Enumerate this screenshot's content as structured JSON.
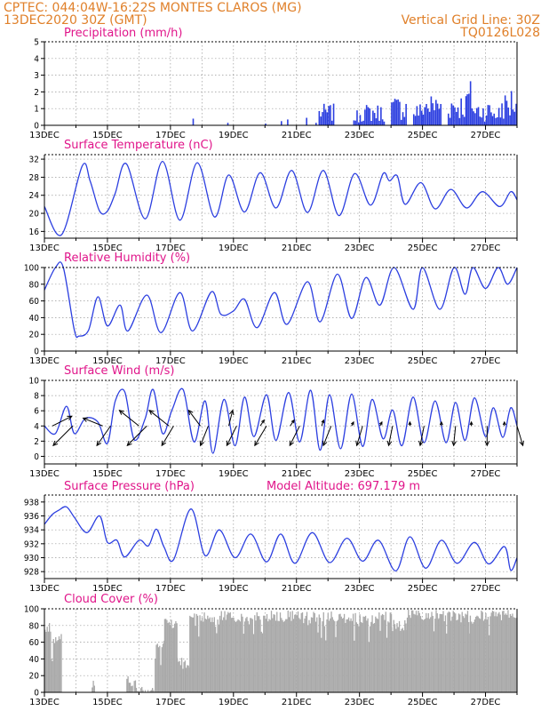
{
  "header": {
    "line1_left": "CPTEC:  044:04W-16:22S  MONTES CLAROS (MG)",
    "line2_left": "13DEC2020 30Z (GMT)",
    "line2_right": "Vertical Grid Line: 30Z",
    "line3_right": "TQ0126L028"
  },
  "colors": {
    "header": "#e0802a",
    "title": "#e0158a",
    "series": "#2c3fe0",
    "cloud": "#a9a9a9"
  },
  "x_labels": [
    "13DEC",
    "15DEC",
    "17DEC",
    "19DEC",
    "21DEC",
    "23DEC",
    "25DEC",
    "27DEC"
  ],
  "chart_data": [
    {
      "type": "bar",
      "title": "Precipitation (mm/h)",
      "ylabel": "mm/h",
      "ylim": [
        0,
        5
      ],
      "yticks": [
        0,
        1,
        2,
        3,
        4,
        5
      ],
      "x_range_days": [
        0,
        15
      ],
      "x_tick_labels": [
        "13DEC",
        "15DEC",
        "17DEC",
        "19DEC",
        "21DEC",
        "23DEC",
        "25DEC",
        "27DEC"
      ],
      "grid": true,
      "events": [
        {
          "x": 4.7,
          "y": 0.4
        },
        {
          "x": 5.8,
          "y": 0.15
        },
        {
          "x": 7.0,
          "y": 0.1
        },
        {
          "x": 7.5,
          "y": 0.25
        },
        {
          "x": 7.7,
          "y": 0.35
        },
        {
          "x": 8.3,
          "y": 0.45
        },
        {
          "x": 8.6,
          "y": 0.15
        }
      ],
      "clusters": [
        {
          "x0": 8.7,
          "x1": 9.2,
          "ymax": 1.3
        },
        {
          "x0": 9.8,
          "x1": 10.0,
          "ymax": 0.9
        },
        {
          "x0": 10.0,
          "x1": 10.8,
          "ymax": 1.3
        },
        {
          "x0": 11.0,
          "x1": 11.5,
          "ymax": 1.8
        },
        {
          "x0": 11.7,
          "x1": 12.0,
          "ymax": 1.4
        },
        {
          "x0": 12.0,
          "x1": 12.6,
          "ymax": 2.0
        },
        {
          "x0": 12.8,
          "x1": 13.4,
          "ymax": 2.0
        },
        {
          "x0": 13.4,
          "x1": 13.6,
          "ymax": 2.8
        },
        {
          "x0": 13.6,
          "x1": 14.2,
          "ymax": 1.5
        },
        {
          "x0": 14.2,
          "x1": 14.5,
          "ymax": 1.2
        },
        {
          "x0": 14.5,
          "x1": 14.8,
          "ymax": 2.0
        },
        {
          "x0": 14.8,
          "x1": 15.0,
          "ymax": 2.4
        }
      ]
    },
    {
      "type": "line",
      "title": "Surface Temperature (nC)",
      "ylim": [
        14.5,
        33
      ],
      "yticks": [
        16,
        20,
        24,
        28,
        32
      ],
      "x_range_days": [
        0,
        15
      ],
      "grid": true,
      "extrema": [
        [
          0.0,
          21.5
        ],
        [
          0.55,
          15.3
        ],
        [
          1.2,
          30.5
        ],
        [
          1.45,
          27.2
        ],
        [
          1.75,
          20.5
        ],
        [
          2.0,
          20.5
        ],
        [
          2.25,
          24.5
        ],
        [
          2.6,
          31.0
        ],
        [
          3.2,
          18.8
        ],
        [
          3.75,
          31.5
        ],
        [
          4.3,
          18.5
        ],
        [
          4.85,
          31.2
        ],
        [
          5.4,
          19.2
        ],
        [
          5.85,
          28.5
        ],
        [
          6.35,
          20.3
        ],
        [
          6.85,
          29.0
        ],
        [
          7.35,
          21.2
        ],
        [
          7.85,
          29.5
        ],
        [
          8.35,
          20.2
        ],
        [
          8.85,
          29.5
        ],
        [
          9.35,
          19.5
        ],
        [
          9.85,
          28.8
        ],
        [
          10.35,
          21.8
        ],
        [
          10.75,
          28.8
        ],
        [
          10.95,
          27.2
        ],
        [
          11.2,
          28.3
        ],
        [
          11.45,
          22.0
        ],
        [
          11.95,
          26.8
        ],
        [
          12.4,
          21.0
        ],
        [
          12.9,
          25.3
        ],
        [
          13.4,
          21.2
        ],
        [
          13.9,
          24.8
        ],
        [
          14.45,
          21.5
        ],
        [
          14.8,
          24.8
        ],
        [
          15.0,
          23.0
        ]
      ]
    },
    {
      "type": "line",
      "title": "Relative Humidity (%)",
      "ylim": [
        0,
        100
      ],
      "yticks": [
        0,
        20,
        40,
        60,
        80,
        100
      ],
      "x_range_days": [
        0,
        15
      ],
      "grid": true,
      "extrema": [
        [
          0.0,
          73
        ],
        [
          0.35,
          100
        ],
        [
          0.6,
          100
        ],
        [
          0.95,
          25
        ],
        [
          1.1,
          18
        ],
        [
          1.4,
          25
        ],
        [
          1.7,
          65
        ],
        [
          2.0,
          30
        ],
        [
          2.4,
          55
        ],
        [
          2.65,
          24
        ],
        [
          3.25,
          67
        ],
        [
          3.7,
          22
        ],
        [
          4.3,
          70
        ],
        [
          4.7,
          24
        ],
        [
          5.3,
          71
        ],
        [
          5.6,
          44
        ],
        [
          6.0,
          48
        ],
        [
          6.35,
          62
        ],
        [
          6.75,
          28
        ],
        [
          7.3,
          70
        ],
        [
          7.7,
          32
        ],
        [
          8.35,
          83
        ],
        [
          8.75,
          35
        ],
        [
          9.3,
          92
        ],
        [
          9.75,
          39
        ],
        [
          10.2,
          88
        ],
        [
          10.65,
          55
        ],
        [
          11.1,
          100
        ],
        [
          11.7,
          50
        ],
        [
          12.0,
          100
        ],
        [
          12.55,
          50
        ],
        [
          13.0,
          100
        ],
        [
          13.35,
          68
        ],
        [
          13.6,
          100
        ],
        [
          14.0,
          75
        ],
        [
          14.4,
          100
        ],
        [
          14.7,
          80
        ],
        [
          15.0,
          100
        ]
      ]
    },
    {
      "type": "line",
      "title": "Surface Wind (m/s)",
      "ylim": [
        -1,
        10
      ],
      "yticks": [
        0,
        2,
        4,
        6,
        8,
        10
      ],
      "x_range_days": [
        0,
        15
      ],
      "grid": true,
      "extrema": [
        [
          0.0,
          4.0
        ],
        [
          0.35,
          3.0
        ],
        [
          0.7,
          6.6
        ],
        [
          0.95,
          3.0
        ],
        [
          1.3,
          5.0
        ],
        [
          1.7,
          4.5
        ],
        [
          2.0,
          1.7
        ],
        [
          2.25,
          7.3
        ],
        [
          2.55,
          8.5
        ],
        [
          2.85,
          2.2
        ],
        [
          3.2,
          5.0
        ],
        [
          3.45,
          8.8
        ],
        [
          3.75,
          3.0
        ],
        [
          4.05,
          6.1
        ],
        [
          4.4,
          8.8
        ],
        [
          4.75,
          1.9
        ],
        [
          5.1,
          7.3
        ],
        [
          5.35,
          0.4
        ],
        [
          5.7,
          7.5
        ],
        [
          6.05,
          1.4
        ],
        [
          6.35,
          7.8
        ],
        [
          6.65,
          2.6
        ],
        [
          7.05,
          8.1
        ],
        [
          7.35,
          2.1
        ],
        [
          7.75,
          8.4
        ],
        [
          8.1,
          1.9
        ],
        [
          8.45,
          8.7
        ],
        [
          8.75,
          0.8
        ],
        [
          9.05,
          8.1
        ],
        [
          9.4,
          1.0
        ],
        [
          9.75,
          8.2
        ],
        [
          10.1,
          1.3
        ],
        [
          10.4,
          7.5
        ],
        [
          10.75,
          2.3
        ],
        [
          11.05,
          6.1
        ],
        [
          11.35,
          1.4
        ],
        [
          11.7,
          7.8
        ],
        [
          12.05,
          1.8
        ],
        [
          12.4,
          7.3
        ],
        [
          12.75,
          1.8
        ],
        [
          13.05,
          7.1
        ],
        [
          13.35,
          2.1
        ],
        [
          13.65,
          7.7
        ],
        [
          14.0,
          2.6
        ],
        [
          14.25,
          6.4
        ],
        [
          14.55,
          2.5
        ],
        [
          14.8,
          6.4
        ],
        [
          15.0,
          4.0
        ]
      ],
      "vectors": [
        [
          0.25,
          1,
          0.5
        ],
        [
          0.9,
          -1,
          -1
        ],
        [
          1.85,
          -1,
          0.4
        ],
        [
          2.1,
          -0.7,
          -1
        ],
        [
          3.0,
          -1,
          0.8
        ],
        [
          3.25,
          -1,
          -1
        ],
        [
          3.95,
          -1,
          0.8
        ],
        [
          4.1,
          -0.6,
          -1
        ],
        [
          4.95,
          -0.6,
          0.8
        ],
        [
          5.2,
          -0.4,
          -1
        ],
        [
          5.85,
          0.2,
          0.8
        ],
        [
          6.1,
          -0.5,
          -1
        ],
        [
          6.85,
          0.2,
          0.3
        ],
        [
          7.05,
          -0.6,
          -1
        ],
        [
          7.8,
          0.2,
          0.3
        ],
        [
          8.1,
          -0.5,
          -1
        ],
        [
          8.8,
          0.1,
          0.3
        ],
        [
          9.1,
          -0.4,
          -1
        ],
        [
          9.75,
          0.1,
          0.2
        ],
        [
          10.1,
          -0.3,
          -1
        ],
        [
          10.65,
          0.1,
          0.2
        ],
        [
          11.05,
          -0.2,
          -1
        ],
        [
          11.6,
          0.0,
          0.2
        ],
        [
          12.05,
          -0.2,
          -1
        ],
        [
          12.6,
          0.0,
          0.2
        ],
        [
          13.05,
          -0.1,
          -1
        ],
        [
          13.55,
          0.0,
          0.2
        ],
        [
          14.05,
          0.0,
          -1
        ],
        [
          14.6,
          0.0,
          0.2
        ],
        [
          15.0,
          0.3,
          -1
        ]
      ]
    },
    {
      "type": "line",
      "title": "Surface Pressure (hPa)",
      "annotation": "Model Altitude: 697.179 m",
      "ylim": [
        927,
        939
      ],
      "yticks": [
        928,
        930,
        932,
        934,
        936,
        938
      ],
      "x_range_days": [
        0,
        15
      ],
      "grid": true,
      "extrema": [
        [
          0.0,
          934.8
        ],
        [
          0.25,
          936.2
        ],
        [
          0.45,
          936.8
        ],
        [
          0.7,
          937.3
        ],
        [
          0.95,
          935.8
        ],
        [
          1.35,
          933.6
        ],
        [
          1.75,
          936.0
        ],
        [
          2.0,
          932.2
        ],
        [
          2.3,
          932.5
        ],
        [
          2.55,
          930.1
        ],
        [
          3.0,
          932.5
        ],
        [
          3.3,
          931.7
        ],
        [
          3.55,
          934.1
        ],
        [
          3.8,
          931.5
        ],
        [
          4.1,
          929.7
        ],
        [
          4.65,
          937.0
        ],
        [
          5.1,
          930.3
        ],
        [
          5.55,
          934.0
        ],
        [
          6.05,
          930.0
        ],
        [
          6.55,
          933.4
        ],
        [
          7.05,
          929.4
        ],
        [
          7.5,
          933.4
        ],
        [
          7.95,
          929.2
        ],
        [
          8.5,
          933.6
        ],
        [
          9.05,
          929.3
        ],
        [
          9.6,
          932.8
        ],
        [
          10.1,
          929.5
        ],
        [
          10.6,
          932.5
        ],
        [
          11.15,
          928.1
        ],
        [
          11.6,
          933.0
        ],
        [
          12.1,
          928.5
        ],
        [
          12.6,
          932.5
        ],
        [
          13.1,
          929.2
        ],
        [
          13.65,
          932.2
        ],
        [
          14.1,
          929.1
        ],
        [
          14.6,
          931.6
        ],
        [
          14.8,
          928.2
        ],
        [
          15.0,
          930.0
        ]
      ]
    },
    {
      "type": "bar",
      "title": "Cloud Cover (%)",
      "ylim": [
        0,
        100
      ],
      "yticks": [
        0,
        20,
        40,
        60,
        80,
        100
      ],
      "x_range_days": [
        0,
        15
      ],
      "grid": true,
      "profile": [
        [
          0.0,
          0.2,
          82
        ],
        [
          0.2,
          0.55,
          68
        ],
        [
          0.55,
          1.5,
          0
        ],
        [
          1.5,
          1.6,
          16
        ],
        [
          1.6,
          2.6,
          0
        ],
        [
          2.6,
          2.8,
          18
        ],
        [
          2.8,
          2.9,
          13
        ],
        [
          2.9,
          3.2,
          5
        ],
        [
          3.2,
          3.5,
          10
        ],
        [
          3.5,
          3.8,
          60
        ],
        [
          3.8,
          4.2,
          88
        ],
        [
          4.2,
          4.6,
          40
        ],
        [
          4.6,
          5.2,
          95
        ],
        [
          5.2,
          5.6,
          90
        ],
        [
          5.6,
          9.5,
          96
        ],
        [
          9.5,
          10.0,
          93
        ],
        [
          10.0,
          10.5,
          94
        ],
        [
          10.5,
          11.0,
          96
        ],
        [
          11.0,
          11.5,
          85
        ],
        [
          11.5,
          12.5,
          97
        ],
        [
          12.5,
          13.5,
          96
        ],
        [
          13.5,
          15.0,
          97
        ]
      ]
    }
  ]
}
